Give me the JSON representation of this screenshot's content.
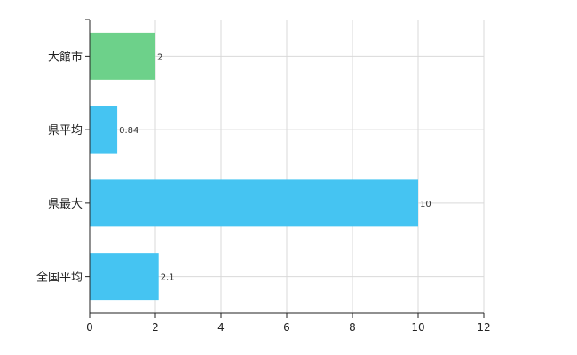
{
  "chart_data": {
    "type": "bar",
    "orientation": "horizontal",
    "categories": [
      "大館市",
      "県平均",
      "県最大",
      "全国平均"
    ],
    "values": [
      2,
      0.84,
      10,
      2.1
    ],
    "value_labels": [
      "2",
      "0.84",
      "10",
      "2.1"
    ],
    "bar_colors": [
      "#6dd18a",
      "#45c4f2",
      "#45c4f2",
      "#45c4f2"
    ],
    "xlim": [
      0,
      12
    ],
    "xticks": [
      0,
      2,
      4,
      6,
      8,
      10,
      12
    ],
    "xtick_labels": [
      "0",
      "2",
      "4",
      "6",
      "8",
      "10",
      "12"
    ],
    "grid": true,
    "title": "",
    "xlabel": "",
    "ylabel": ""
  }
}
